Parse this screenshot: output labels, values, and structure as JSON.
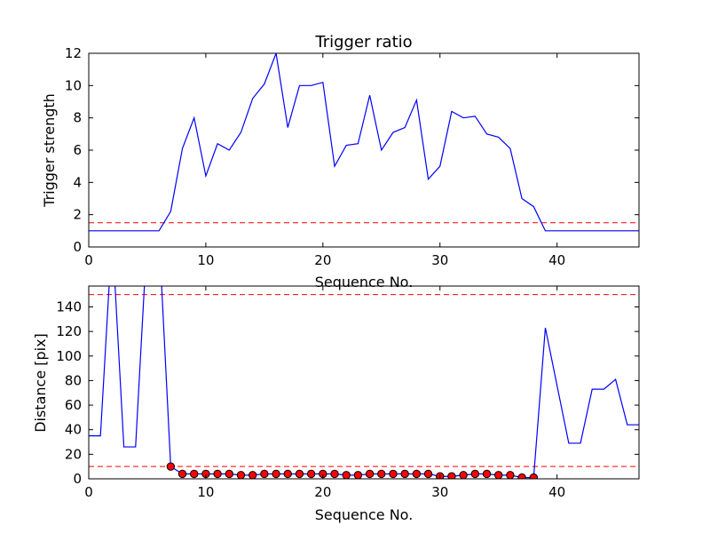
{
  "chart_data": [
    {
      "type": "line",
      "title": "Trigger ratio",
      "xlabel": "Sequence No.",
      "ylabel": "Trigger strength",
      "xlim": [
        0,
        47
      ],
      "ylim": [
        0,
        12
      ],
      "xticks": [
        0,
        10,
        20,
        30,
        40
      ],
      "yticks": [
        0,
        2,
        4,
        6,
        8,
        10,
        12
      ],
      "grid": false,
      "x": [
        0,
        1,
        2,
        3,
        4,
        5,
        6,
        7,
        8,
        9,
        10,
        11,
        12,
        13,
        14,
        15,
        16,
        17,
        18,
        19,
        20,
        21,
        22,
        23,
        24,
        25,
        26,
        27,
        28,
        29,
        30,
        31,
        32,
        33,
        34,
        35,
        36,
        37,
        38,
        39,
        40,
        41,
        42,
        43,
        44,
        45,
        46,
        47
      ],
      "series": [
        {
          "color": "#0000ff",
          "style": "solid",
          "values": [
            1,
            1,
            1,
            1,
            1,
            1,
            1,
            2.2,
            6.1,
            8,
            4.4,
            6.4,
            6,
            7.1,
            9.2,
            10.1,
            12,
            7.4,
            10,
            10,
            10.2,
            5,
            6.3,
            6.4,
            9.4,
            6,
            7.1,
            7.4,
            9.1,
            4.2,
            5,
            8.4,
            8,
            8.1,
            7,
            6.8,
            6.1,
            3,
            2.5,
            1,
            1,
            1,
            1,
            1,
            1,
            1,
            1,
            1
          ]
        }
      ],
      "reference_lines": [
        {
          "y": 1.5,
          "color": "#ff0000",
          "style": "dashed"
        }
      ]
    },
    {
      "type": "line",
      "xlabel": "Sequence No.",
      "ylabel": "Distance [pix]",
      "xlim": [
        0,
        47
      ],
      "ylim": [
        0,
        157
      ],
      "xticks": [
        0,
        10,
        20,
        30,
        40
      ],
      "yticks": [
        0,
        20,
        40,
        60,
        80,
        100,
        120,
        140
      ],
      "grid": false,
      "x": [
        0,
        1,
        2,
        3,
        4,
        5,
        6,
        7,
        8,
        9,
        10,
        11,
        12,
        13,
        14,
        15,
        16,
        17,
        18,
        19,
        20,
        21,
        22,
        23,
        24,
        25,
        26,
        27,
        28,
        29,
        30,
        31,
        32,
        33,
        34,
        35,
        36,
        37,
        38,
        39,
        40,
        41,
        42,
        43,
        44,
        45,
        46,
        47
      ],
      "series": [
        {
          "color": "#0000ff",
          "style": "solid",
          "values": [
            35,
            35,
            200,
            26,
            26,
            200,
            200,
            10,
            4,
            4,
            4,
            4,
            4,
            3,
            3,
            4,
            4,
            4,
            4,
            4,
            4,
            4,
            3,
            3,
            4,
            4,
            4,
            4,
            4,
            4,
            2,
            2,
            3,
            4,
            4,
            3,
            3,
            1,
            1,
            123,
            76,
            29,
            29,
            73,
            73,
            81,
            44,
            44
          ]
        }
      ],
      "markers": {
        "color": "#ff0000",
        "x": [
          7,
          8,
          9,
          10,
          11,
          12,
          13,
          14,
          15,
          16,
          17,
          18,
          19,
          20,
          21,
          22,
          23,
          24,
          25,
          26,
          27,
          28,
          29,
          30,
          31,
          32,
          33,
          34,
          35,
          36,
          37,
          38
        ],
        "y": [
          10,
          4,
          4,
          4,
          4,
          4,
          3,
          3,
          4,
          4,
          4,
          4,
          4,
          4,
          4,
          3,
          3,
          4,
          4,
          4,
          4,
          4,
          4,
          2,
          2,
          3,
          4,
          4,
          3,
          3,
          1,
          1
        ]
      },
      "reference_lines": [
        {
          "y": 150,
          "color": "#ff0000",
          "style": "dashed"
        },
        {
          "y": 10,
          "color": "#ff0000",
          "style": "dashed"
        }
      ]
    }
  ]
}
